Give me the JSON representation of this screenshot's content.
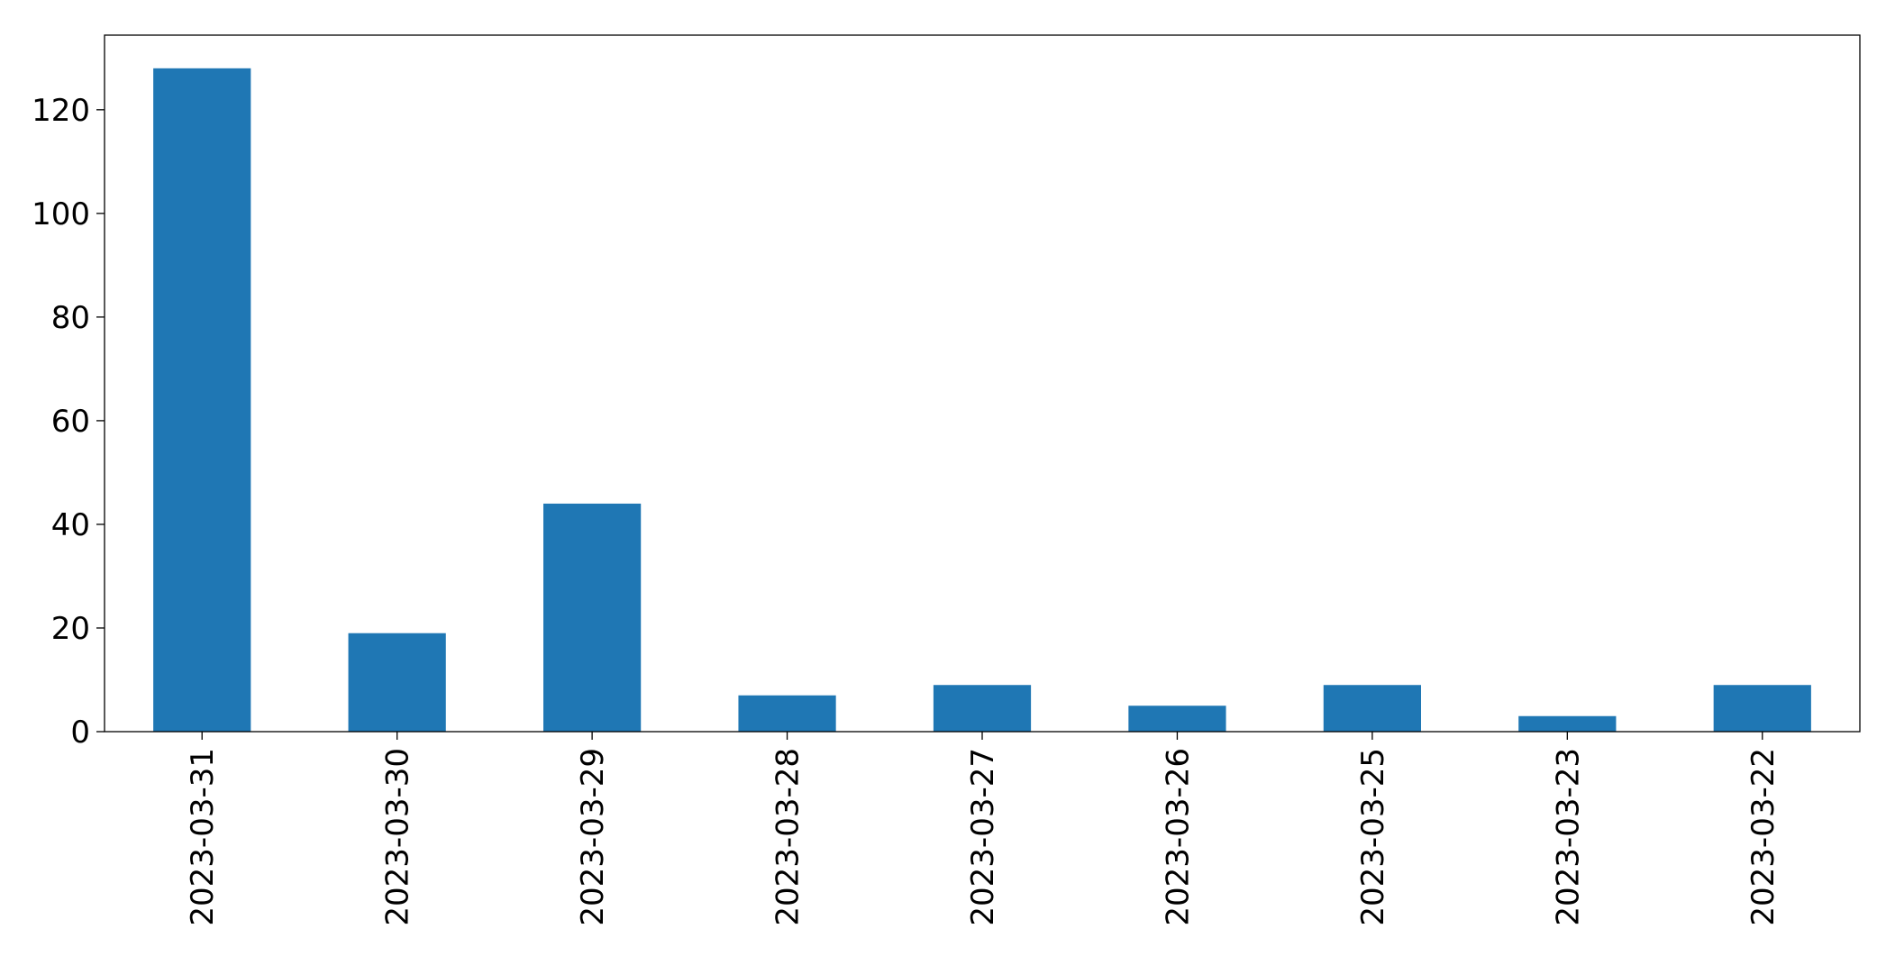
{
  "chart_data": {
    "type": "bar",
    "categories": [
      "2023-03-31",
      "2023-03-30",
      "2023-03-29",
      "2023-03-28",
      "2023-03-27",
      "2023-03-26",
      "2023-03-25",
      "2023-03-23",
      "2023-03-22"
    ],
    "values": [
      128,
      19,
      44,
      7,
      9,
      5,
      9,
      3,
      9
    ],
    "title": "",
    "xlabel": "",
    "ylabel": "",
    "ylim": [
      0,
      134.4
    ],
    "yticks": [
      0,
      20,
      40,
      60,
      80,
      100,
      120
    ],
    "bar_color": "#1f77b4",
    "grid": false,
    "legend": "none"
  }
}
